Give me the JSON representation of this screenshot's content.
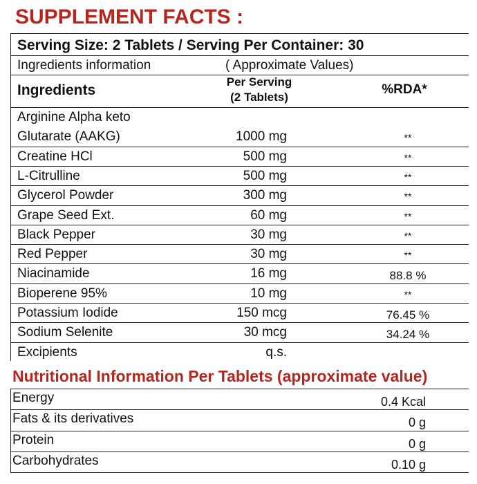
{
  "title": "SUPPLEMENT FACTS :",
  "serving": "Serving Size: 2 Tablets / Serving Per Container: 30",
  "info": [
    "Ingredients information",
    "( Approximate Values)"
  ],
  "header": {
    "ingredients": "Ingredients",
    "per_serving": [
      "Per Serving",
      "(2 Tablets)"
    ],
    "rda": "%RDA*"
  },
  "ingredients": [
    {
      "name": [
        "Arginine Alpha keto",
        "Glutarate (AAKG)"
      ],
      "amount": "1000 mg",
      "rda": "**"
    },
    {
      "name": [
        "Creatine HCl"
      ],
      "amount": "500 mg",
      "rda": "**"
    },
    {
      "name": [
        "L-Citrulline"
      ],
      "amount": "500 mg",
      "rda": "**"
    },
    {
      "name": [
        "Glycerol Powder"
      ],
      "amount": "300 mg",
      "rda": "**"
    },
    {
      "name": [
        "Grape Seed Ext."
      ],
      "amount": "60 mg",
      "rda": "**"
    },
    {
      "name": [
        "Black Pepper"
      ],
      "amount": "30 mg",
      "rda": "**"
    },
    {
      "name": [
        "Red Pepper"
      ],
      "amount": "30 mg",
      "rda": "**"
    },
    {
      "name": [
        "Niacinamide"
      ],
      "amount": "16 mg",
      "rda": "88.8 %"
    },
    {
      "name": [
        "Bioperene 95%"
      ],
      "amount": "10 mg",
      "rda": "**"
    },
    {
      "name": [
        "Potassium Iodide"
      ],
      "amount": "150 mcg",
      "rda": "76.45 %"
    },
    {
      "name": [
        "Sodium Selenite"
      ],
      "amount": "30 mcg",
      "rda": "34.24 %"
    },
    {
      "name": [
        "Excipients"
      ],
      "amount": "q.s."
    }
  ],
  "nutrition": {
    "title": "Nutritional Information Per Tablets (approximate value)",
    "rows": [
      {
        "name": "Energy",
        "value": "0.4 Kcal"
      },
      {
        "name": "Fats & its derivatives",
        "value": "0 g"
      },
      {
        "name": "Protein",
        "value": "0 g"
      },
      {
        "name": "Carbohydrates",
        "value": "0.10 g"
      }
    ]
  }
}
